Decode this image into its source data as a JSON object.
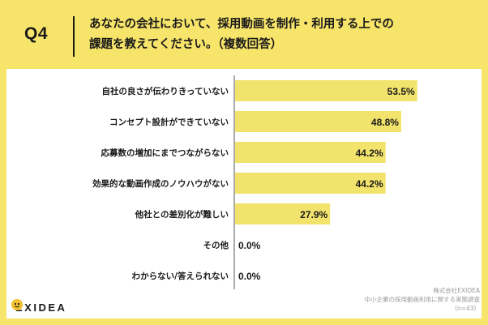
{
  "header": {
    "question_label": "Q4",
    "question_line1": "あなたの会社において、採用動画を制作・利用する上での",
    "question_line2": "課題を教えてください。（複数回答）"
  },
  "footer": {
    "company": "株式会社EXIDEA",
    "survey": "中小企業の採用動画利用に関する実態調査",
    "sample": "（n=43）"
  },
  "logo": {
    "text": "EXIDEA",
    "mark_icon": "exidea-logo-mark-icon"
  },
  "colors": {
    "background": "#f7e46a",
    "bar": "#f2e36c",
    "axis": "#555555",
    "text": "#1a1a1a"
  },
  "chart_data": {
    "type": "bar",
    "orientation": "horizontal",
    "title": "",
    "xlabel": "",
    "ylabel": "",
    "xlim": [
      0,
      100
    ],
    "categories": [
      "自社の良さが伝わりきっていない",
      "コンセプト設計ができていない",
      "応募数の増加にまでつながらない",
      "効果的な動画作成のノウハウがない",
      "他社との差別化が難しい",
      "その他",
      "わからない/答えられない"
    ],
    "values": [
      53.5,
      48.8,
      44.2,
      44.2,
      27.9,
      0.0,
      0.0
    ],
    "value_labels": [
      "53.5%",
      "48.8%",
      "44.2%",
      "44.2%",
      "27.9%",
      "0.0%",
      "0.0%"
    ]
  }
}
